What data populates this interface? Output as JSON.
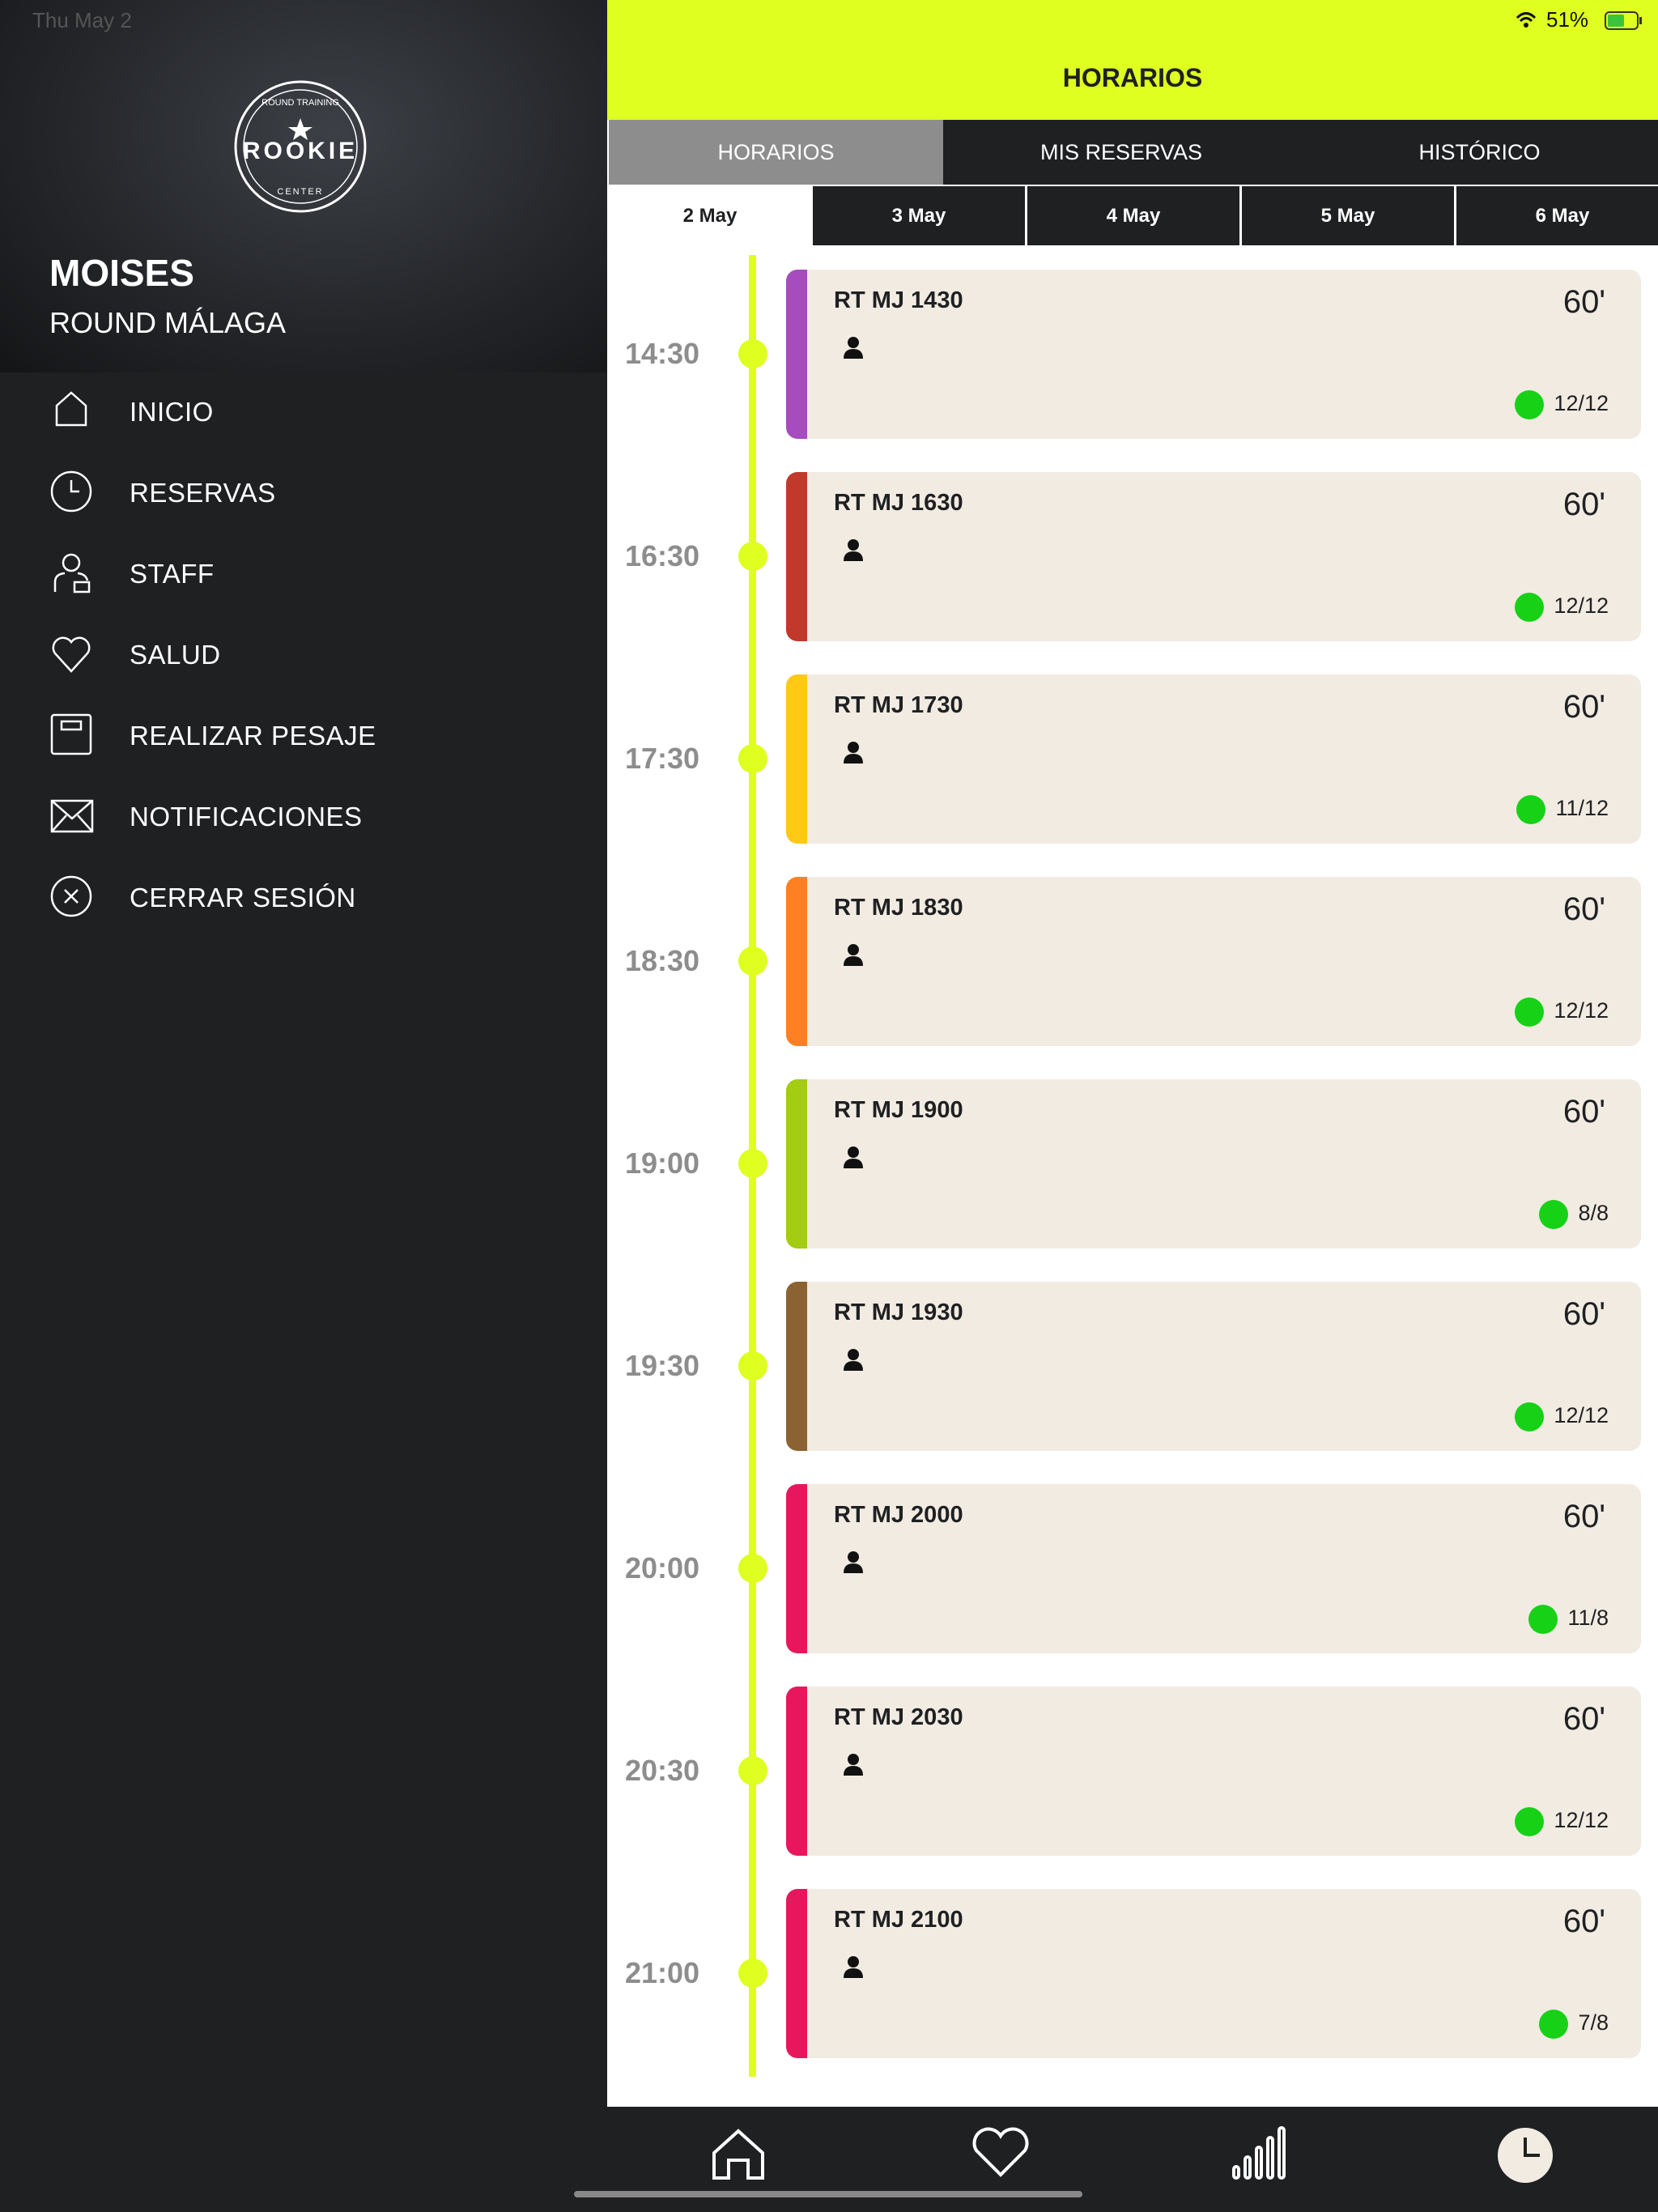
{
  "status": {
    "date": "Thu May 2",
    "battery": "51%"
  },
  "sidebar": {
    "logo": {
      "top": "ROUND TRAINING",
      "name": "ROOKIE",
      "bottom": "CENTER"
    },
    "user": "MOISES",
    "club": "ROUND MÁLAGA",
    "menu": [
      "INICIO",
      "RESERVAS",
      "STAFF",
      "SALUD",
      "REALIZAR PESAJE",
      "NOTIFICACIONES",
      "CERRAR SESIÓN"
    ]
  },
  "header": {
    "title": "HORARIOS"
  },
  "tabs": [
    "HORARIOS",
    "MIS RESERVAS",
    "HISTÓRICO"
  ],
  "days": [
    "2 May",
    "3 May",
    "4 May",
    "5 May",
    "6 May"
  ],
  "classes": [
    {
      "time": "14:30",
      "name": "RT MJ 1430",
      "duration": "60'",
      "occupancy": "12/12",
      "color": "#a64cbf"
    },
    {
      "time": "16:30",
      "name": "RT MJ 1630",
      "duration": "60'",
      "occupancy": "12/12",
      "color": "#c0392b"
    },
    {
      "time": "17:30",
      "name": "RT MJ 1730",
      "duration": "60'",
      "occupancy": "11/12",
      "color": "#ffc914"
    },
    {
      "time": "18:30",
      "name": "RT MJ 1830",
      "duration": "60'",
      "occupancy": "12/12",
      "color": "#ff7f22"
    },
    {
      "time": "19:00",
      "name": "RT MJ 1900",
      "duration": "60'",
      "occupancy": "8/8",
      "color": "#a3cc12"
    },
    {
      "time": "19:30",
      "name": "RT MJ 1930",
      "duration": "60'",
      "occupancy": "12/12",
      "color": "#8b6232"
    },
    {
      "time": "20:00",
      "name": "RT MJ 2000",
      "duration": "60'",
      "occupancy": "11/8",
      "color": "#e8175d"
    },
    {
      "time": "20:30",
      "name": "RT MJ 2030",
      "duration": "60'",
      "occupancy": "12/12",
      "color": "#e8175d"
    },
    {
      "time": "21:00",
      "name": "RT MJ 2100",
      "duration": "60'",
      "occupancy": "7/8",
      "color": "#e8175d"
    }
  ]
}
